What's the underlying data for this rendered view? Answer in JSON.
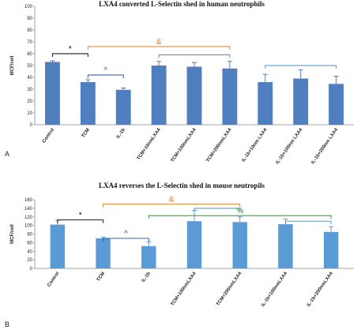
{
  "chart_data": [
    {
      "type": "bar",
      "panel_label": "A",
      "title": "LXA4 converted L-Selectin shed in human neutrophils",
      "ylabel": "MCF/cell",
      "ylim": [
        0,
        100
      ],
      "yticks": [
        0,
        10,
        20,
        30,
        40,
        50,
        60,
        70,
        80,
        90,
        100
      ],
      "grid": false,
      "bar_color": "#4f7fbf",
      "categories": [
        "Control",
        "TCM",
        "IL-1b",
        "TCM+10nmLXA4",
        "TCM+100nmLXA4",
        "TCM+200nmLXA4",
        "IL-1b+10nm LXA4",
        "IL-1b+100nm LXA4",
        "IL-1b+200nm LXA4"
      ],
      "values": [
        53,
        36,
        29.5,
        50,
        49,
        47.5,
        36,
        39,
        34.5
      ],
      "errors": [
        1,
        2,
        1.5,
        3.5,
        3.5,
        6,
        6.5,
        7.5,
        6.5
      ],
      "annotations": [
        {
          "symbol": "*",
          "color": "#000000",
          "from": 0,
          "to": 1,
          "y": 60
        },
        {
          "symbol": "^",
          "color": "#1f4e9a",
          "from": 1,
          "to": 2,
          "y": 42
        },
        {
          "symbol": "&",
          "color": "#e07b2a",
          "from": 1,
          "to": 5,
          "y": 66
        },
        {
          "symbol": "",
          "color": "#4a90c2",
          "from": 3,
          "to": 5,
          "y": 59
        },
        {
          "symbol": "",
          "color": "#4a90c2",
          "from": 6,
          "to": 8,
          "y": 50
        }
      ]
    },
    {
      "type": "bar",
      "panel_label": "B",
      "title": "LXA4 reverses the L-Selectin shed in mouse neutropils",
      "ylabel": "MCF/cell",
      "ylim": [
        0,
        160
      ],
      "yticks": [
        0,
        20,
        40,
        60,
        80,
        100,
        120,
        140,
        160
      ],
      "grid": false,
      "bar_color": "#5b9bd5",
      "categories": [
        "Control",
        "TCM",
        "IL-1b",
        "TCM+100nmLXA4",
        "TCM+200nmLXA4",
        "IL-1b+100nmLXA4",
        "IL-1b+200nmLXA4"
      ],
      "values": [
        102,
        70,
        52,
        110,
        108,
        103,
        85
      ],
      "errors": [
        10,
        3,
        10,
        25,
        12,
        12,
        12
      ],
      "annotations": [
        {
          "symbol": "*",
          "color": "#000000",
          "from": 0,
          "to": 1,
          "y": 113
        },
        {
          "symbol": "^",
          "color": "#1f4e9a",
          "from": 1,
          "to": 2,
          "y": 70
        },
        {
          "symbol": "&",
          "color": "#e07b2a",
          "from": 1,
          "to": 4,
          "y": 150
        },
        {
          "symbol": "",
          "color": "#4a90c2",
          "from": 3,
          "to": 4,
          "y": 140
        },
        {
          "symbol": "%",
          "color": "#2e8b2e",
          "from": 2,
          "to": 6,
          "y": 123
        },
        {
          "symbol": "",
          "color": "#4a90c2",
          "from": 5,
          "to": 6,
          "y": 110
        }
      ]
    }
  ]
}
